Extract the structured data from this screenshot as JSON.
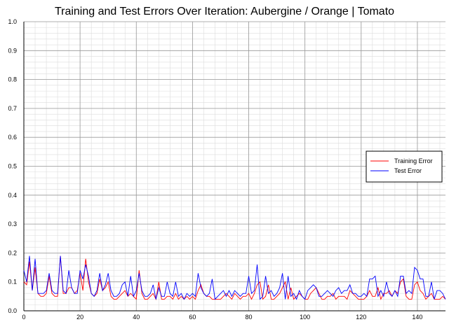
{
  "chart_data": {
    "type": "line",
    "title": "Training and Test Errors Over Iteration: Aubergine / Orange | Tomato",
    "xlabel": "",
    "ylabel": "",
    "xlim": [
      0,
      150
    ],
    "ylim": [
      0,
      1.0
    ],
    "x_ticks": [
      "0",
      "20",
      "40",
      "60",
      "80",
      "100",
      "120",
      "140"
    ],
    "y_ticks": [
      "0.0",
      "0.1",
      "0.2",
      "0.3",
      "0.4",
      "0.5",
      "0.6",
      "0.7",
      "0.8",
      "0.9",
      "1.0"
    ],
    "grid": true,
    "legend_position": "right",
    "series": [
      {
        "name": "Training Error",
        "color": "#ff0000",
        "values": [
          0.1,
          0.09,
          0.17,
          0.07,
          0.15,
          0.06,
          0.05,
          0.05,
          0.06,
          0.12,
          0.06,
          0.05,
          0.05,
          0.19,
          0.06,
          0.06,
          0.08,
          0.08,
          0.06,
          0.07,
          0.13,
          0.07,
          0.18,
          0.1,
          0.06,
          0.05,
          0.06,
          0.11,
          0.07,
          0.08,
          0.1,
          0.05,
          0.04,
          0.04,
          0.05,
          0.06,
          0.07,
          0.05,
          0.06,
          0.05,
          0.04,
          0.14,
          0.06,
          0.04,
          0.04,
          0.05,
          0.06,
          0.04,
          0.1,
          0.04,
          0.04,
          0.05,
          0.05,
          0.04,
          0.06,
          0.04,
          0.05,
          0.04,
          0.05,
          0.04,
          0.05,
          0.04,
          0.07,
          0.09,
          0.06,
          0.05,
          0.05,
          0.04,
          0.04,
          0.04,
          0.04,
          0.05,
          0.06,
          0.05,
          0.04,
          0.06,
          0.05,
          0.04,
          0.05,
          0.05,
          0.06,
          0.04,
          0.06,
          0.09,
          0.1,
          0.04,
          0.05,
          0.09,
          0.04,
          0.04,
          0.05,
          0.06,
          0.08,
          0.1,
          0.04,
          0.08,
          0.04,
          0.05,
          0.06,
          0.05,
          0.04,
          0.04,
          0.06,
          0.07,
          0.08,
          0.06,
          0.04,
          0.04,
          0.05,
          0.05,
          0.06,
          0.04,
          0.05,
          0.05,
          0.05,
          0.04,
          0.07,
          0.06,
          0.05,
          0.04,
          0.04,
          0.04,
          0.05,
          0.07,
          0.05,
          0.05,
          0.08,
          0.04,
          0.06,
          0.06,
          0.07,
          0.05,
          0.07,
          0.06,
          0.1,
          0.11,
          0.05,
          0.04,
          0.04,
          0.09,
          0.1,
          0.07,
          0.06,
          0.04,
          0.05,
          0.06,
          0.04,
          0.04,
          0.04,
          0.05,
          0.04
        ]
      },
      {
        "name": "Test Error",
        "color": "#0000ff",
        "values": [
          0.14,
          0.1,
          0.19,
          0.07,
          0.18,
          0.06,
          0.06,
          0.06,
          0.07,
          0.13,
          0.07,
          0.06,
          0.06,
          0.19,
          0.07,
          0.06,
          0.14,
          0.08,
          0.06,
          0.06,
          0.14,
          0.11,
          0.16,
          0.12,
          0.06,
          0.05,
          0.07,
          0.13,
          0.07,
          0.09,
          0.13,
          0.07,
          0.05,
          0.05,
          0.06,
          0.09,
          0.1,
          0.05,
          0.12,
          0.05,
          0.07,
          0.13,
          0.07,
          0.05,
          0.05,
          0.06,
          0.09,
          0.04,
          0.08,
          0.05,
          0.05,
          0.1,
          0.06,
          0.05,
          0.1,
          0.05,
          0.06,
          0.04,
          0.06,
          0.05,
          0.06,
          0.05,
          0.13,
          0.08,
          0.06,
          0.05,
          0.06,
          0.11,
          0.04,
          0.05,
          0.06,
          0.07,
          0.05,
          0.07,
          0.05,
          0.07,
          0.06,
          0.05,
          0.06,
          0.06,
          0.12,
          0.06,
          0.07,
          0.16,
          0.04,
          0.05,
          0.12,
          0.06,
          0.07,
          0.05,
          0.06,
          0.08,
          0.13,
          0.04,
          0.12,
          0.05,
          0.06,
          0.04,
          0.07,
          0.05,
          0.04,
          0.07,
          0.08,
          0.09,
          0.08,
          0.05,
          0.05,
          0.06,
          0.07,
          0.06,
          0.05,
          0.07,
          0.08,
          0.06,
          0.07,
          0.07,
          0.09,
          0.06,
          0.06,
          0.05,
          0.05,
          0.06,
          0.05,
          0.11,
          0.11,
          0.12,
          0.05,
          0.07,
          0.05,
          0.1,
          0.06,
          0.05,
          0.07,
          0.05,
          0.12,
          0.12,
          0.06,
          0.07,
          0.06,
          0.15,
          0.14,
          0.11,
          0.11,
          0.05,
          0.05,
          0.1,
          0.04,
          0.07,
          0.07,
          0.06,
          0.04
        ]
      }
    ]
  }
}
